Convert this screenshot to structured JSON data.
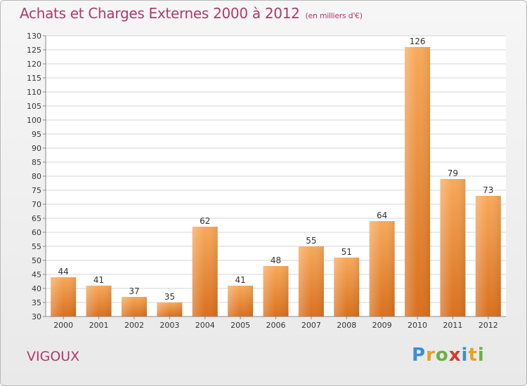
{
  "header": {
    "title": "Achats et Charges Externes 2000 à 2012",
    "unit": "(en milliers d'€)"
  },
  "footer": {
    "commune": "VIGOUX",
    "logo": "Proxiti"
  },
  "colors": {
    "accent": "#b03a6c",
    "bar_top": "#f7a95a",
    "bar_bottom": "#d9701e"
  },
  "chart_data": {
    "type": "bar",
    "title": "Achats et Charges Externes 2000 à 2012",
    "subtitle": "(en milliers d'€)",
    "categories": [
      "2000",
      "2001",
      "2002",
      "2003",
      "2004",
      "2005",
      "2006",
      "2007",
      "2008",
      "2009",
      "2010",
      "2011",
      "2012"
    ],
    "values": [
      44,
      41,
      37,
      35,
      62,
      41,
      48,
      55,
      51,
      64,
      126,
      79,
      73
    ],
    "ylim": [
      30,
      130
    ],
    "yticks": [
      30,
      35,
      40,
      45,
      50,
      55,
      60,
      65,
      70,
      75,
      80,
      85,
      90,
      95,
      100,
      105,
      110,
      115,
      120,
      125,
      130
    ],
    "grid": true,
    "xlabel": "",
    "ylabel": ""
  }
}
